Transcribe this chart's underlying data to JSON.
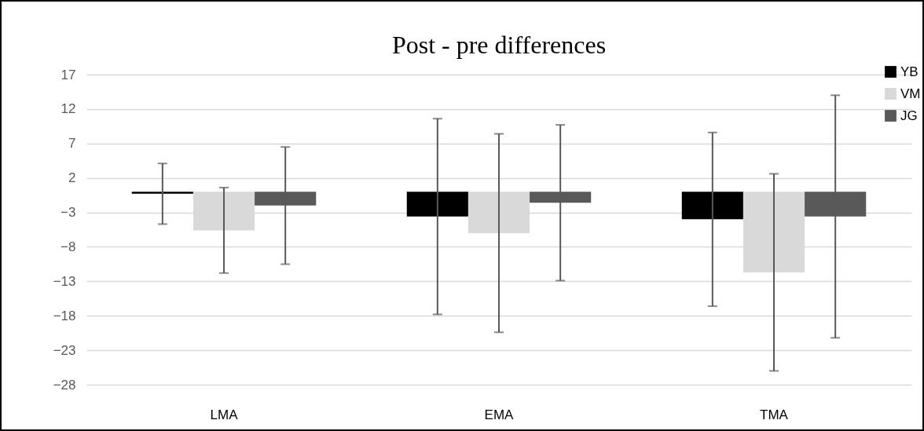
{
  "chart_data": {
    "type": "bar",
    "title": "Post - pre differences",
    "categories": [
      "LMA",
      "EMA",
      "TMA"
    ],
    "series": [
      {
        "name": "YB",
        "color": "#000000",
        "values": [
          -0.3,
          -3.6,
          -4.0
        ],
        "errors": [
          4.4,
          14.2,
          12.6
        ]
      },
      {
        "name": "VM",
        "color": "#d9d9d9",
        "values": [
          -5.6,
          -6.0,
          -11.7
        ],
        "errors": [
          6.2,
          14.4,
          14.3
        ]
      },
      {
        "name": "JG",
        "color": "#595959",
        "values": [
          -2.0,
          -1.6,
          -3.6
        ],
        "errors": [
          8.5,
          11.3,
          17.6
        ]
      }
    ],
    "ylim": [
      -28,
      17
    ],
    "yticks": [
      17,
      12,
      7,
      2,
      -3,
      -8,
      -13,
      -18,
      -23,
      -28
    ],
    "grid": "y",
    "legend": "top right"
  }
}
